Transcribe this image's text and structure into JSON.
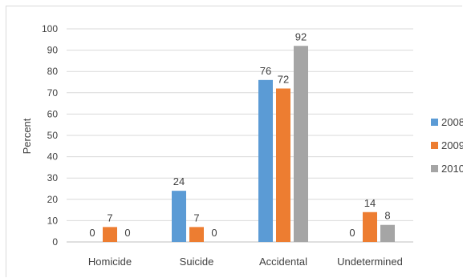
{
  "chart_data": {
    "type": "bar",
    "title": "",
    "xlabel": "",
    "ylabel": "Percent",
    "ylim": [
      0,
      100
    ],
    "yticks": [
      0,
      10,
      20,
      30,
      40,
      50,
      60,
      70,
      80,
      90,
      100
    ],
    "grid": true,
    "legend_position": "right",
    "categories": [
      "Homicide",
      "Suicide",
      "Accidental",
      "Undetermined"
    ],
    "series": [
      {
        "name": "2008",
        "color": "#5b9bd5",
        "values": [
          0,
          24,
          76,
          0
        ]
      },
      {
        "name": "2009",
        "color": "#ed7d31",
        "values": [
          7,
          7,
          72,
          14
        ]
      },
      {
        "name": "2010",
        "color": "#a5a5a5",
        "values": [
          0,
          0,
          92,
          8
        ]
      }
    ]
  }
}
